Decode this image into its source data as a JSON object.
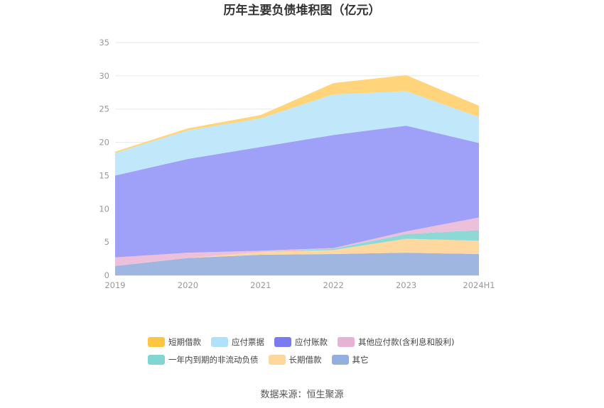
{
  "chart_data": {
    "type": "area",
    "stacked": true,
    "title": "历年主要负债堆积图（亿元）",
    "xlabel": "",
    "ylabel": "",
    "categories": [
      "2019",
      "2020",
      "2021",
      "2022",
      "2023",
      "2024H1"
    ],
    "ylim": [
      0,
      35
    ],
    "yticks": [
      0,
      5,
      10,
      15,
      20,
      25,
      30,
      35
    ],
    "grid": true,
    "legend_position": "bottom",
    "series": [
      {
        "name": "其它",
        "color": "#9fb6e0",
        "values": [
          1.4,
          2.6,
          3.1,
          3.2,
          3.4,
          3.2
        ]
      },
      {
        "name": "长期借款",
        "color": "#ffd8a0",
        "values": [
          0.0,
          0.0,
          0.4,
          0.6,
          2.1,
          2.0
        ]
      },
      {
        "name": "一年内到期的非流动负债",
        "color": "#8ed9d6",
        "values": [
          0.0,
          0.0,
          0.0,
          0.2,
          0.7,
          1.6
        ]
      },
      {
        "name": "其他应付款(含利息和股利)",
        "color": "#ecbfda",
        "values": [
          1.3,
          0.8,
          0.2,
          0.1,
          0.4,
          1.9
        ]
      },
      {
        "name": "应付账款",
        "color": "#9fa0f8",
        "values": [
          12.3,
          14.1,
          15.6,
          17.0,
          15.9,
          11.2
        ]
      },
      {
        "name": "应付票据",
        "color": "#c0e8fa",
        "values": [
          3.4,
          4.3,
          4.3,
          6.1,
          5.2,
          3.9
        ]
      },
      {
        "name": "短期借款",
        "color": "#ffd47a",
        "values": [
          0.2,
          0.3,
          0.5,
          1.7,
          2.4,
          1.7
        ]
      }
    ],
    "legend": [
      {
        "name": "短期借款",
        "color": "#fcc640"
      },
      {
        "name": "应付票据",
        "color": "#aee2fb"
      },
      {
        "name": "应付账款",
        "color": "#7a7bf0"
      },
      {
        "name": "其他应付款(含利息和股利)",
        "color": "#e7b3d4"
      },
      {
        "name": "一年内到期的非流动负债",
        "color": "#82d6d2"
      },
      {
        "name": "长期借款",
        "color": "#ffd79c"
      },
      {
        "name": "其它",
        "color": "#93aee0"
      }
    ]
  },
  "source": "数据来源：恒生聚源"
}
